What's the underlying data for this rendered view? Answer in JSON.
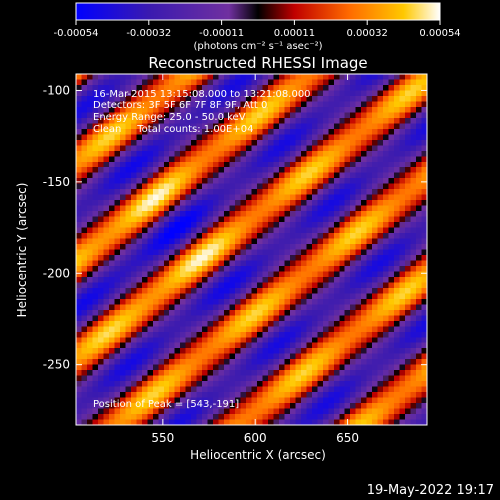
{
  "chart_data": {
    "type": "heatmap",
    "title": "Reconstructed RHESSI Image",
    "xlabel": "Heliocentric X (arcsec)",
    "ylabel": "Heliocentric Y (arcsec)",
    "xlim": [
      503,
      693
    ],
    "ylim": [
      -283,
      -91
    ],
    "x_ticks": [
      550,
      600,
      650
    ],
    "y_ticks": [
      -100,
      -150,
      -200,
      -250
    ],
    "colorbar": {
      "range": [
        -0.00054,
        0.00054
      ],
      "ticks": [
        "-0.00054",
        "-0.00032",
        "-0.00011",
        "0.00011",
        "0.00032",
        "0.00054"
      ],
      "unit_label": "(photons cm⁻² s⁻¹ asec⁻²)",
      "colormap": [
        "#0000ff",
        "#3a1ab0",
        "#7030a0",
        "#000000",
        "#c00000",
        "#ff6a00",
        "#ffc800",
        "#ffffff"
      ]
    },
    "annotations": {
      "time_range": "16-Mar-2015 13:15:08.000 to 13:21:08.000",
      "detectors": "Detectors: 3F 5F 6F 7F 8F 9F, Att 0",
      "energy_range": "Energy Range: 25.0 - 50.0 keV",
      "method": "Clean     Total counts: 1.00E+04",
      "peak": "Position of Peak = [543,-191]"
    },
    "peak_position": [
      543,
      -191
    ],
    "footer_date": "19-May-2022 19:17"
  }
}
